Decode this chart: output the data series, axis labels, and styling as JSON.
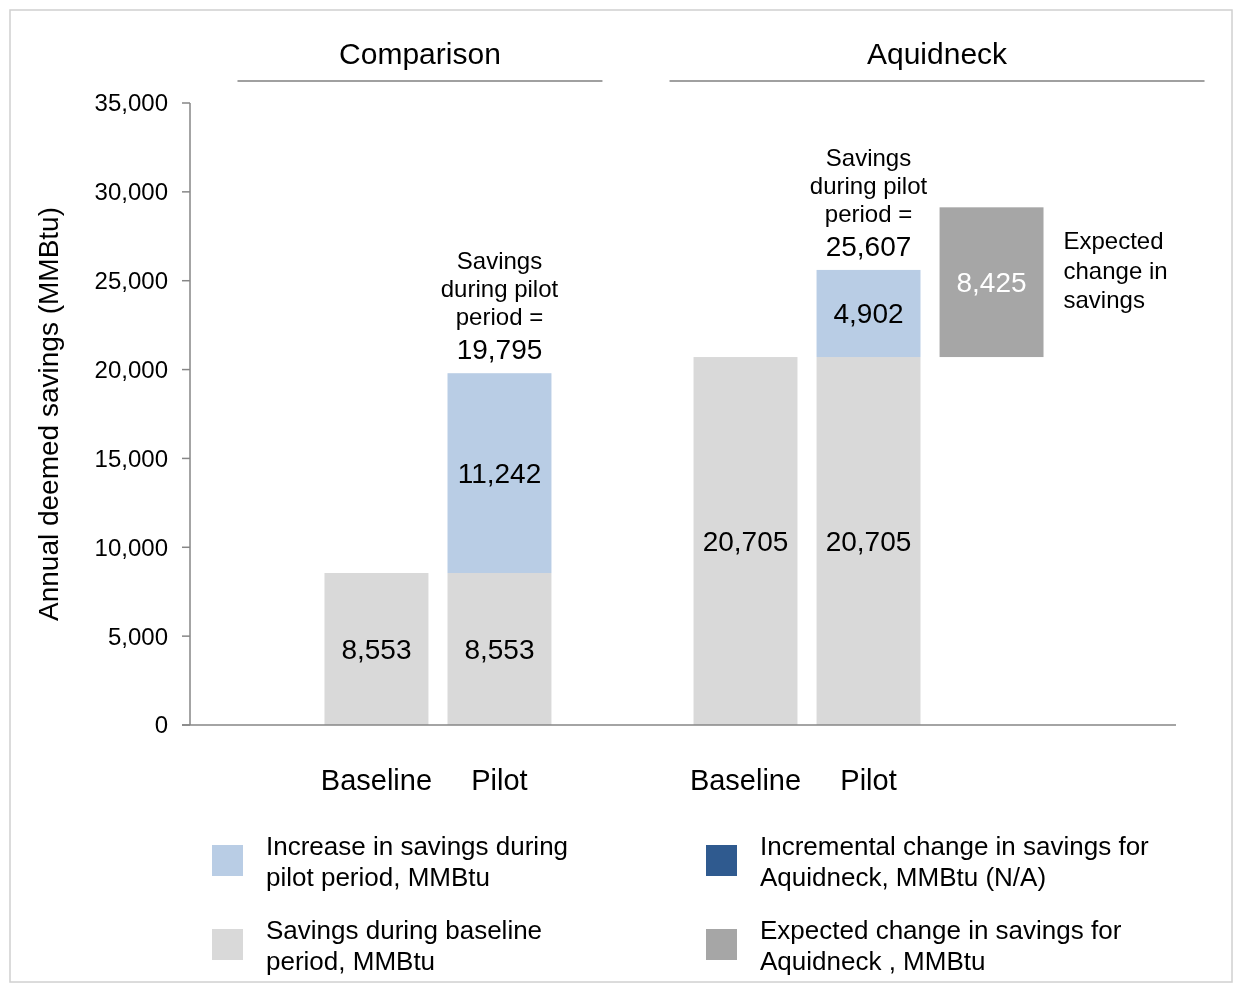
{
  "chart_data": {
    "type": "bar",
    "stacked": true,
    "ylabel": "Annual deemed savings (MMBtu)",
    "categories": [
      null,
      "Baseline",
      "Pilot",
      null,
      "Baseline",
      "Pilot",
      null,
      null
    ],
    "series": [
      {
        "name": "Savings during baseline period, MMBtu",
        "color": "#d9d9d9",
        "values": [
          null,
          8553,
          8553,
          null,
          20705,
          20705,
          null,
          null
        ],
        "value_labels": [
          null,
          "8,553",
          "8,553",
          null,
          "20,705",
          "20,705",
          null,
          null
        ]
      },
      {
        "name": "Increase in savings during pilot period, MMBtu",
        "color": "#b9cde5",
        "values": [
          null,
          null,
          11242,
          null,
          null,
          4902,
          null,
          null
        ],
        "value_labels": [
          null,
          null,
          "11,242",
          null,
          null,
          "4,902",
          null,
          null
        ]
      },
      {
        "name": "Expected change in savings for Aquidneck , MMBtu",
        "color": "#a6a6a6",
        "values": [
          null,
          null,
          null,
          null,
          null,
          null,
          8425,
          null
        ],
        "value_labels": [
          null,
          null,
          null,
          null,
          null,
          null,
          "8,425",
          null
        ],
        "base": [
          null,
          null,
          null,
          null,
          null,
          null,
          20705,
          null
        ]
      },
      {
        "name": "Incremental change in savings for Aquidneck, MMBtu (N/A)",
        "color": "#2f5a8f",
        "values": [
          null,
          null,
          null,
          null,
          null,
          null,
          null,
          null
        ]
      }
    ],
    "ylim": [
      0,
      35000
    ],
    "yticks": [
      0,
      {
        "value": 5000,
        "label": "5,000"
      },
      {
        "value": 10000,
        "label": "10,000"
      },
      {
        "value": 15000,
        "label": "15,000"
      },
      {
        "value": 20000,
        "label": "20,000"
      },
      {
        "value": 25000,
        "label": "25,000"
      },
      {
        "value": 30000,
        "label": "30,000"
      },
      {
        "value": 35000,
        "label": "35,000"
      }
    ],
    "totals": [
      null,
      null,
      "Savings during pilot period = 19,795",
      null,
      null,
      "Savings during pilot period = 25,607",
      null,
      null
    ],
    "annotations": [
      "Comparison",
      "Aquidneck",
      "Expected change in savings"
    ],
    "legend": "bottom",
    "grid": false
  }
}
